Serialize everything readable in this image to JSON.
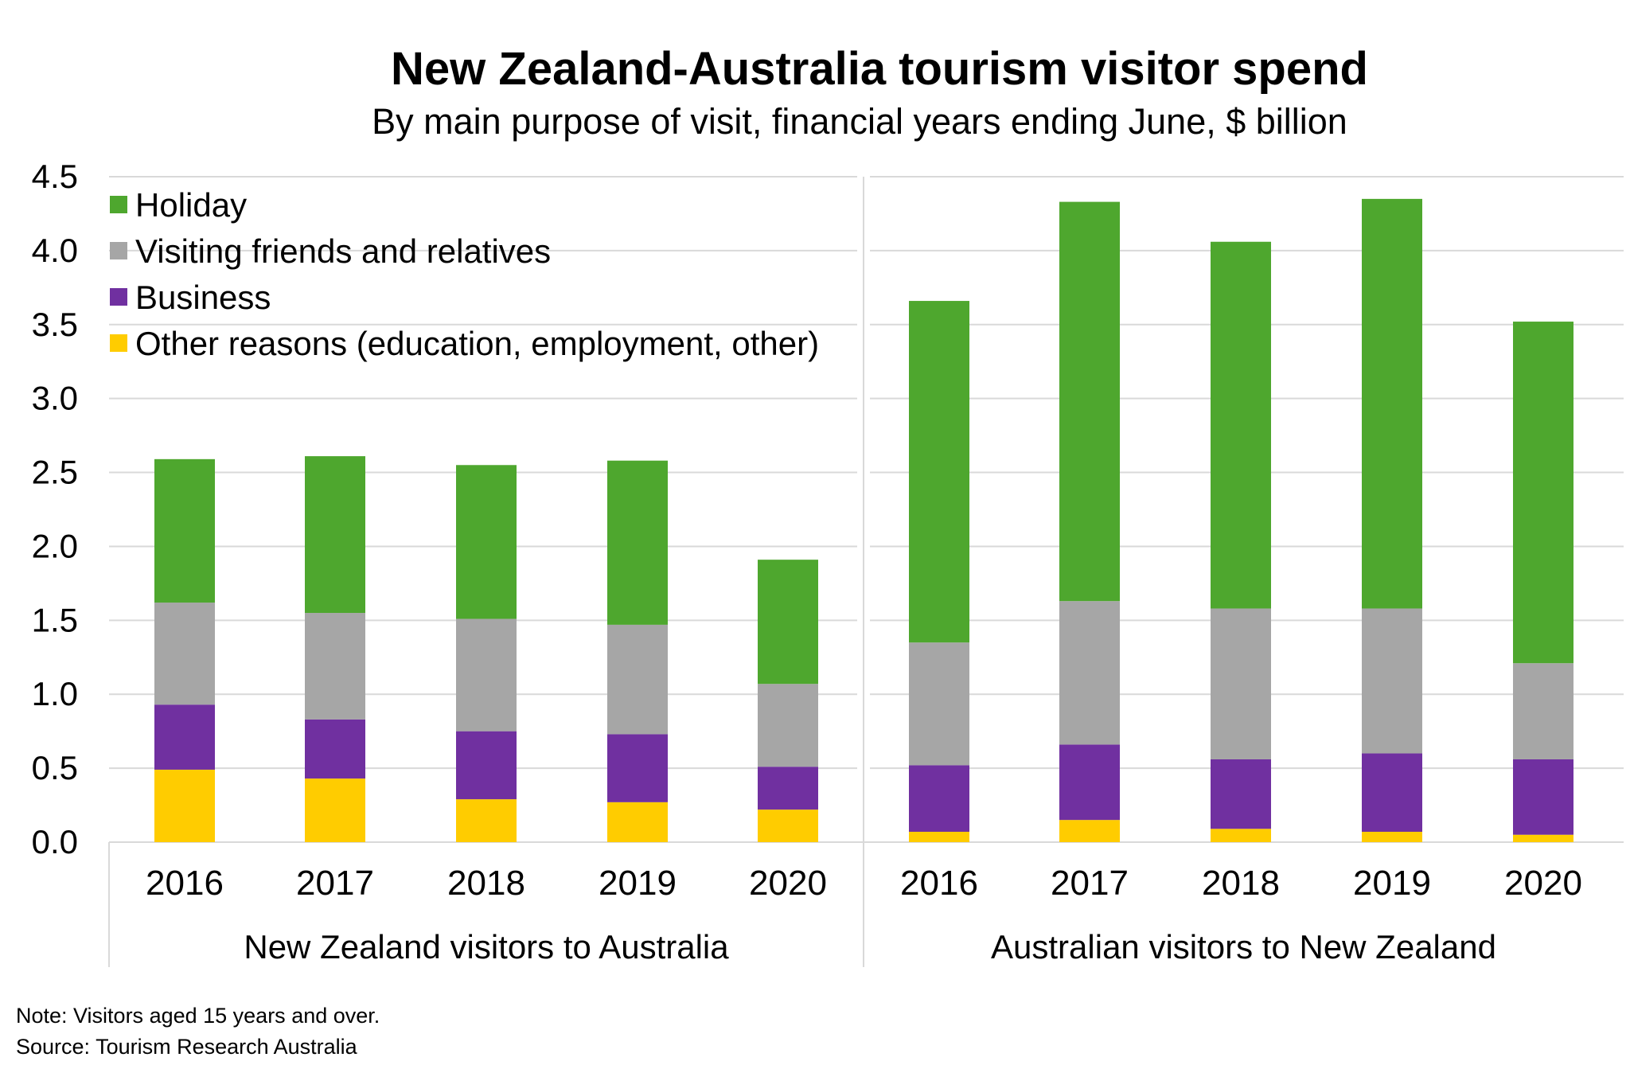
{
  "chart_data": {
    "type": "bar",
    "stacked": true,
    "title": "New Zealand-Australia tourism visitor spend",
    "subtitle": "By main purpose of visit, financial years ending June, $ billion",
    "ylim": [
      0,
      4.5
    ],
    "yticks": [
      "0.0",
      "0.5",
      "1.0",
      "1.5",
      "2.0",
      "2.5",
      "3.0",
      "3.5",
      "4.0",
      "4.5"
    ],
    "grid": true,
    "legend_position": "top-left",
    "groups": [
      {
        "label": "New Zealand visitors to Australia",
        "categories": [
          "2016",
          "2017",
          "2018",
          "2019",
          "2020"
        ],
        "series": [
          {
            "name": "Other reasons (education, employment, other)",
            "color": "#FFCC00",
            "values": [
              0.49,
              0.43,
              0.29,
              0.27,
              0.22
            ]
          },
          {
            "name": "Business",
            "color": "#7030A0",
            "values": [
              0.44,
              0.4,
              0.46,
              0.46,
              0.29
            ]
          },
          {
            "name": "Visiting friends and relatives",
            "color": "#A6A6A6",
            "values": [
              0.69,
              0.72,
              0.76,
              0.74,
              0.56
            ]
          },
          {
            "name": "Holiday",
            "color": "#4EA72E",
            "values": [
              0.97,
              1.06,
              1.04,
              1.11,
              0.84
            ]
          }
        ]
      },
      {
        "label": "Australian visitors to New Zealand",
        "categories": [
          "2016",
          "2017",
          "2018",
          "2019",
          "2020"
        ],
        "series": [
          {
            "name": "Other reasons (education, employment, other)",
            "color": "#FFCC00",
            "values": [
              0.07,
              0.15,
              0.09,
              0.07,
              0.05
            ]
          },
          {
            "name": "Business",
            "color": "#7030A0",
            "values": [
              0.45,
              0.51,
              0.47,
              0.53,
              0.51
            ]
          },
          {
            "name": "Visiting friends and relatives",
            "color": "#A6A6A6",
            "values": [
              0.83,
              0.97,
              1.02,
              0.98,
              0.65
            ]
          },
          {
            "name": "Holiday",
            "color": "#4EA72E",
            "values": [
              2.31,
              2.7,
              2.48,
              2.77,
              2.31
            ]
          }
        ]
      }
    ],
    "legend": [
      {
        "name": "Holiday",
        "color": "#4EA72E"
      },
      {
        "name": "Visiting friends and relatives",
        "color": "#A6A6A6"
      },
      {
        "name": "Business",
        "color": "#7030A0"
      },
      {
        "name": "Other reasons (education, employment, other)",
        "color": "#FFCC00"
      }
    ]
  },
  "notes": {
    "note": "Note: Visitors aged 15 years and over.",
    "source": "Source: Tourism Research Australia"
  }
}
